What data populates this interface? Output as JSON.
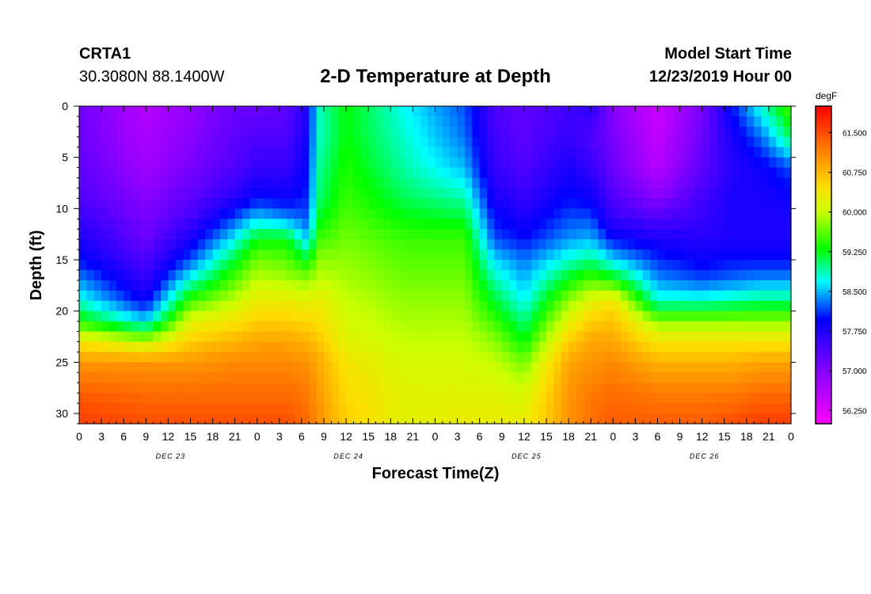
{
  "header": {
    "station": "CRTA1",
    "coordinates": "30.3080N 88.1400W",
    "title": "2-D Temperature at Depth",
    "model_start_label": "Model Start Time",
    "model_start_value": "12/23/2019 Hour 00"
  },
  "chart_data": {
    "type": "heatmap",
    "title": "2-D Temperature at Depth",
    "xlabel": "Forecast Time(Z)",
    "ylabel": "Depth (ft)",
    "x_hours_range": [
      0,
      96
    ],
    "x_tick_step_hours": 3,
    "x_tick_labels": [
      "0",
      "3",
      "6",
      "9",
      "12",
      "15",
      "18",
      "21",
      "0",
      "3",
      "6",
      "9",
      "12",
      "15",
      "18",
      "21",
      "0",
      "3",
      "6",
      "9",
      "12",
      "15",
      "18",
      "21",
      "0",
      "3",
      "6",
      "9",
      "12",
      "15",
      "18",
      "21",
      "0"
    ],
    "day_labels": [
      {
        "label": "DEC 23",
        "hour": 12
      },
      {
        "label": "DEC 24",
        "hour": 36
      },
      {
        "label": "DEC 25",
        "hour": 60
      },
      {
        "label": "DEC 26",
        "hour": 84
      }
    ],
    "ylim": [
      0,
      31
    ],
    "y_ticks": [
      "0",
      "5",
      "10",
      "15",
      "20",
      "25",
      "30"
    ],
    "colorbar": {
      "units": "degF",
      "min": 56.0,
      "max": 62.0,
      "tick_labels": [
        "61.500",
        "60.750",
        "60.000",
        "59.250",
        "58.500",
        "57.750",
        "57.000",
        "56.250"
      ],
      "tick_values": [
        61.5,
        60.75,
        60.0,
        59.25,
        58.5,
        57.75,
        57.0,
        56.25
      ]
    },
    "approx_profiles": {
      "description": "Estimated temperature (degF) by forecast hour (rows) and depth in ft (columns)",
      "depths": [
        0,
        3,
        6,
        9,
        11,
        13,
        15,
        17,
        19,
        21,
        23,
        25,
        28,
        31
      ],
      "rows": [
        {
          "hour": 0,
          "temps": [
            57.2,
            57.2,
            57.3,
            57.4,
            57.6,
            57.8,
            58.0,
            58.4,
            58.8,
            59.4,
            60.4,
            61.0,
            61.4,
            61.6
          ]
        },
        {
          "hour": 9,
          "temps": [
            56.6,
            56.7,
            56.8,
            57.0,
            57.1,
            57.2,
            57.4,
            57.6,
            57.9,
            58.6,
            60.0,
            61.0,
            61.3,
            61.5
          ]
        },
        {
          "hour": 15,
          "temps": [
            56.9,
            57.0,
            57.1,
            57.3,
            57.5,
            57.8,
            58.2,
            58.8,
            59.5,
            60.2,
            60.6,
            61.0,
            61.3,
            61.5
          ]
        },
        {
          "hour": 21,
          "temps": [
            57.2,
            57.3,
            57.4,
            57.7,
            58.2,
            58.7,
            59.2,
            59.6,
            60.0,
            60.4,
            60.8,
            61.1,
            61.3,
            61.5
          ]
        },
        {
          "hour": 24,
          "temps": [
            57.2,
            57.4,
            57.6,
            58.0,
            58.6,
            59.3,
            59.7,
            60.0,
            60.3,
            60.6,
            60.9,
            61.1,
            61.3,
            61.5
          ]
        },
        {
          "hour": 28,
          "temps": [
            57.3,
            57.4,
            57.6,
            57.9,
            58.4,
            59.3,
            59.6,
            59.9,
            60.3,
            60.6,
            60.9,
            61.1,
            61.3,
            61.5
          ]
        },
        {
          "hour": 31,
          "temps": [
            57.8,
            57.9,
            58.0,
            58.1,
            58.2,
            58.5,
            59.2,
            59.8,
            60.2,
            60.5,
            60.8,
            61.0,
            61.2,
            61.3
          ]
        },
        {
          "hour": 32,
          "temps": [
            58.8,
            58.8,
            58.9,
            59.0,
            59.2,
            59.5,
            59.8,
            60.0,
            60.3,
            60.5,
            60.7,
            60.9,
            61.0,
            61.1
          ]
        },
        {
          "hour": 36,
          "temps": [
            59.3,
            59.3,
            59.4,
            59.5,
            59.6,
            59.7,
            59.8,
            59.9,
            60.0,
            60.1,
            60.2,
            60.4,
            60.5,
            60.6
          ]
        },
        {
          "hour": 44,
          "temps": [
            58.7,
            58.8,
            58.9,
            59.1,
            59.3,
            59.5,
            59.6,
            59.7,
            59.8,
            59.9,
            60.0,
            60.1,
            60.2,
            60.2
          ]
        },
        {
          "hour": 52,
          "temps": [
            58.2,
            58.3,
            58.5,
            58.9,
            59.2,
            59.5,
            59.6,
            59.7,
            59.8,
            59.9,
            60.0,
            60.1,
            60.2,
            60.3
          ]
        },
        {
          "hour": 56,
          "temps": [
            57.4,
            57.5,
            57.6,
            57.8,
            58.0,
            58.2,
            58.6,
            58.9,
            59.2,
            59.5,
            59.8,
            60.0,
            60.2,
            60.3
          ]
        },
        {
          "hour": 60,
          "temps": [
            57.3,
            57.3,
            57.4,
            57.6,
            57.8,
            58.0,
            58.3,
            58.5,
            58.7,
            59.0,
            59.3,
            59.7,
            60.1,
            60.3
          ]
        },
        {
          "hour": 66,
          "temps": [
            57.5,
            57.6,
            57.8,
            58.0,
            58.2,
            58.4,
            58.8,
            59.3,
            59.8,
            60.2,
            60.6,
            60.9,
            61.0,
            61.0
          ]
        },
        {
          "hour": 69,
          "temps": [
            57.7,
            57.4,
            57.6,
            57.9,
            58.2,
            58.5,
            59.0,
            59.6,
            60.2,
            60.6,
            60.9,
            61.0,
            61.2,
            61.3
          ]
        },
        {
          "hour": 72,
          "temps": [
            57.0,
            57.1,
            57.2,
            57.4,
            57.6,
            58.0,
            58.6,
            59.4,
            60.4,
            60.7,
            60.9,
            61.1,
            61.3,
            61.4
          ]
        },
        {
          "hour": 78,
          "temps": [
            56.4,
            56.5,
            56.6,
            57.0,
            57.4,
            57.8,
            58.1,
            58.4,
            58.8,
            59.8,
            60.4,
            60.8,
            61.2,
            61.4
          ]
        },
        {
          "hour": 84,
          "temps": [
            57.1,
            57.2,
            57.3,
            57.5,
            57.6,
            57.7,
            57.9,
            58.2,
            58.8,
            59.8,
            60.4,
            60.8,
            61.2,
            61.4
          ]
        },
        {
          "hour": 88,
          "temps": [
            58.0,
            57.8,
            57.7,
            57.8,
            57.8,
            57.8,
            58.0,
            58.3,
            58.9,
            59.8,
            60.4,
            60.8,
            61.2,
            61.5
          ]
        },
        {
          "hour": 92,
          "temps": [
            58.8,
            58.3,
            57.9,
            57.8,
            57.8,
            57.8,
            58.0,
            58.4,
            59.0,
            59.8,
            60.4,
            60.9,
            61.3,
            61.6
          ]
        },
        {
          "hour": 96,
          "temps": [
            59.6,
            59.1,
            58.2,
            57.9,
            57.8,
            57.8,
            58.0,
            58.4,
            59.0,
            59.8,
            60.4,
            60.9,
            61.3,
            61.6
          ]
        }
      ]
    }
  }
}
